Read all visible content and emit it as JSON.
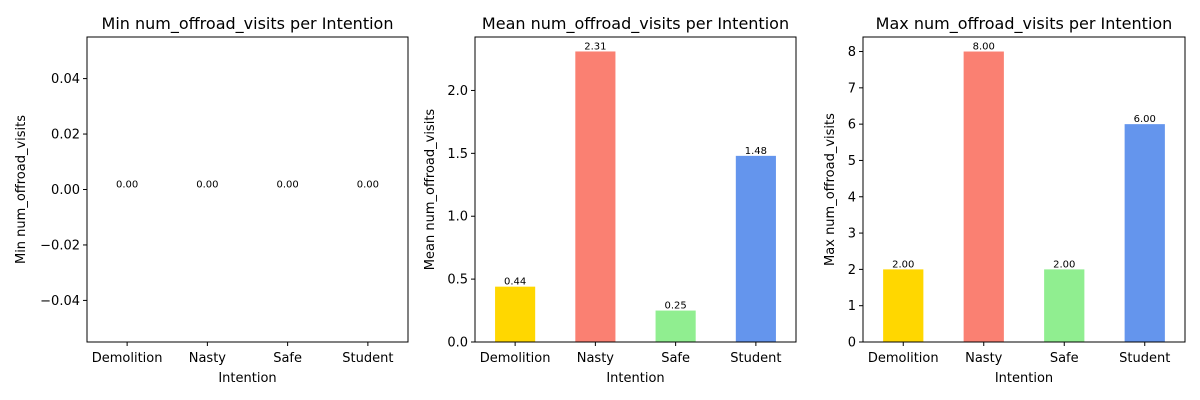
{
  "chart_data": [
    {
      "type": "bar",
      "title": "Min num_offroad_visits per Intention",
      "xlabel": "Intention",
      "ylabel": "Min num_offroad_visits",
      "categories": [
        "Demolition",
        "Nasty",
        "Safe",
        "Student"
      ],
      "values": [
        0.0,
        0.0,
        0.0,
        0.0
      ],
      "value_labels": [
        "0.00",
        "0.00",
        "0.00",
        "0.00"
      ],
      "ylim": [
        -0.055,
        0.055
      ],
      "yticks": [
        -0.04,
        -0.02,
        0.0,
        0.02,
        0.04
      ],
      "ytick_labels": [
        "−0.04",
        "−0.02",
        "0.00",
        "0.02",
        "0.04"
      ],
      "grid": false
    },
    {
      "type": "bar",
      "title": "Mean num_offroad_visits per Intention",
      "xlabel": "Intention",
      "ylabel": "Mean num_offroad_visits",
      "categories": [
        "Demolition",
        "Nasty",
        "Safe",
        "Student"
      ],
      "values": [
        0.44,
        2.31,
        0.25,
        1.48
      ],
      "value_labels": [
        "0.44",
        "2.31",
        "0.25",
        "1.48"
      ],
      "ylim": [
        0,
        2.425
      ],
      "yticks": [
        0.0,
        0.5,
        1.0,
        1.5,
        2.0
      ],
      "ytick_labels": [
        "0.0",
        "0.5",
        "1.0",
        "1.5",
        "2.0"
      ],
      "grid": false
    },
    {
      "type": "bar",
      "title": "Max num_offroad_visits per Intention",
      "xlabel": "Intention",
      "ylabel": "Max num_offroad_visits",
      "categories": [
        "Demolition",
        "Nasty",
        "Safe",
        "Student"
      ],
      "values": [
        2.0,
        8.0,
        2.0,
        6.0
      ],
      "value_labels": [
        "2.00",
        "8.00",
        "2.00",
        "6.00"
      ],
      "ylim": [
        0,
        8.4
      ],
      "yticks": [
        0,
        1,
        2,
        3,
        4,
        5,
        6,
        7,
        8
      ],
      "ytick_labels": [
        "0",
        "1",
        "2",
        "3",
        "4",
        "5",
        "6",
        "7",
        "8"
      ],
      "grid": false
    }
  ],
  "colors": [
    "#FFD700",
    "#FA8072",
    "#90EE90",
    "#6495ED"
  ]
}
